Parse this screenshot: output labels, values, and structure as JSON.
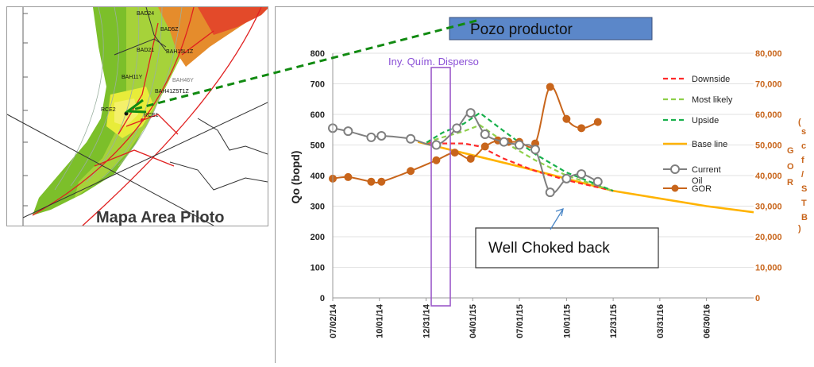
{
  "map": {
    "caption": "Mapa Area Piloto",
    "well_labels": [
      "BAD24",
      "BAD5Z",
      "BAD21",
      "BAH15L1Z",
      "BAH11Y",
      "BAH46Y",
      "BAH41Z5T1Z",
      "RCE1",
      "RCE2"
    ]
  },
  "callouts": {
    "pozo": "Pozo productor",
    "iny": "Iny. Quím. Disperso",
    "choked": "Well Choked back"
  },
  "colors": {
    "downside": "#ff2a2a",
    "most_likely": "#8ed04a",
    "upside": "#18b04c",
    "base_line": "#ffb300",
    "current_oil": "#7f7f7f",
    "gor": "#c8651b",
    "callout_box": "#5b87c9",
    "injection_box": "#9b59c9",
    "arrow": "#118a11"
  },
  "chart_data": {
    "type": "line",
    "ylabel": "Qo (bopd)",
    "y2label": "GOR (SCF/STB)",
    "ylim": [
      0,
      800
    ],
    "yticks": [
      "0",
      "100",
      "200",
      "300",
      "400",
      "500",
      "600",
      "700",
      "800"
    ],
    "y2lim": [
      0,
      80000
    ],
    "y2ticks": [
      "0",
      "10,000",
      "20,000",
      "30,000",
      "40,000",
      "50,000",
      "60,000",
      "70,000",
      "80,000"
    ],
    "xticks": [
      "07/02/14",
      "10/01/14",
      "12/31/14",
      "04/01/15",
      "07/01/15",
      "10/01/15",
      "12/31/15",
      "03/31/16",
      "06/30/16"
    ],
    "legend": [
      "Downside",
      "Most likely",
      "Upside",
      "Base line",
      "Current Oil",
      "GOR"
    ],
    "series": [
      {
        "name": "Downside",
        "axis": "left",
        "x": [
          "2015-01-01",
          "2015-02-01",
          "2015-03-15",
          "2015-04-15",
          "2015-06-01",
          "2015-08-01",
          "2015-10-01",
          "2015-12-31"
        ],
        "y": [
          508,
          505,
          505,
          495,
          455,
          415,
          385,
          350
        ]
      },
      {
        "name": "Most likely",
        "axis": "left",
        "x": [
          "2015-01-01",
          "2015-02-01",
          "2015-03-15",
          "2015-04-15",
          "2015-06-01",
          "2015-08-01",
          "2015-10-01",
          "2015-12-31"
        ],
        "y": [
          508,
          525,
          545,
          565,
          510,
          450,
          400,
          350
        ]
      },
      {
        "name": "Upside",
        "axis": "left",
        "x": [
          "2015-01-01",
          "2015-02-01",
          "2015-03-15",
          "2015-04-15",
          "2015-06-01",
          "2015-08-01",
          "2015-10-01",
          "2015-12-31"
        ],
        "y": [
          508,
          540,
          570,
          605,
          545,
          470,
          410,
          350
        ]
      },
      {
        "name": "Base line",
        "axis": "left",
        "x": [
          "2014-12-15",
          "2015-06-30",
          "2015-12-31",
          "2016-06-30",
          "2016-09-30"
        ],
        "y": [
          510,
          430,
          350,
          300,
          280
        ]
      },
      {
        "name": "Current Oil",
        "axis": "left",
        "x": [
          "2014-07-02",
          "2014-08-01",
          "2014-09-15",
          "2014-10-05",
          "2014-12-01",
          "2015-01-20",
          "2015-03-01",
          "2015-03-28",
          "2015-04-25",
          "2015-06-01",
          "2015-07-01",
          "2015-08-01",
          "2015-08-30",
          "2015-10-01",
          "2015-10-30",
          "2015-12-01"
        ],
        "y": [
          555,
          545,
          525,
          530,
          520,
          500,
          555,
          605,
          535,
          510,
          500,
          485,
          345,
          390,
          405,
          380
        ]
      },
      {
        "name": "GOR",
        "axis": "right",
        "x": [
          "2014-07-02",
          "2014-08-01",
          "2014-09-15",
          "2014-10-05",
          "2014-12-01",
          "2015-01-20",
          "2015-02-25",
          "2015-03-28",
          "2015-04-25",
          "2015-05-20",
          "2015-06-10",
          "2015-07-01",
          "2015-08-01",
          "2015-08-30",
          "2015-10-01",
          "2015-10-30",
          "2015-12-01"
        ],
        "y": [
          39000,
          39500,
          38000,
          38000,
          41500,
          45000,
          47500,
          45500,
          49500,
          51500,
          51000,
          51000,
          50500,
          69000,
          58500,
          55500,
          57500
        ]
      }
    ]
  }
}
